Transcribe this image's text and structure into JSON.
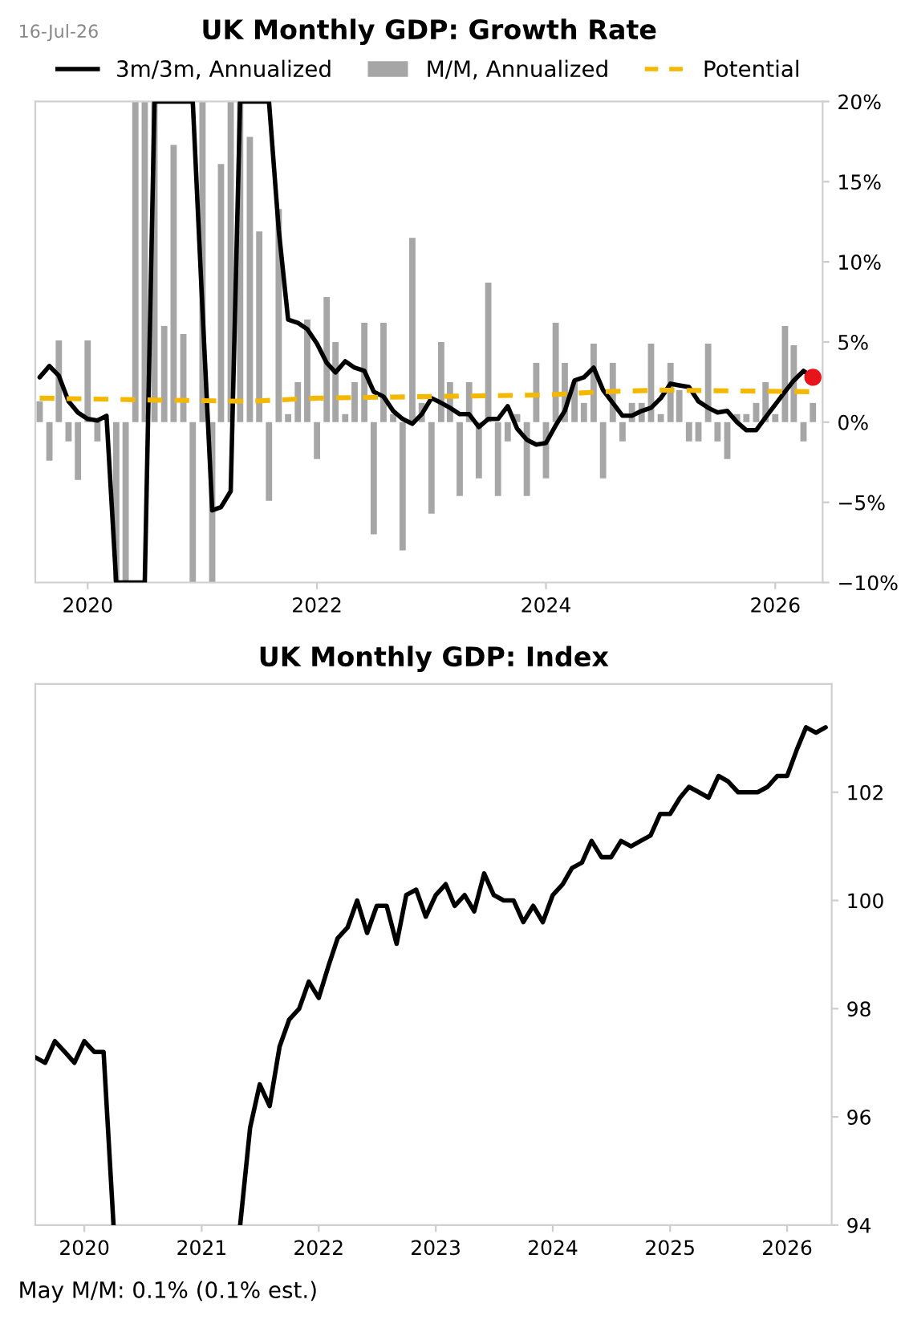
{
  "chart_data": [
    {
      "type": "line",
      "title": "UK Monthly GDP: Growth Rate",
      "legend": "top",
      "grid": false,
      "annotations": [
        "16-Jul-26"
      ],
      "x": [
        "2019-08",
        "2019-09",
        "2019-10",
        "2019-11",
        "2019-12",
        "2020-01",
        "2020-02",
        "2020-03",
        "2020-04",
        "2020-05",
        "2020-06",
        "2020-07",
        "2020-08",
        "2020-09",
        "2020-10",
        "2020-11",
        "2020-12",
        "2021-01",
        "2021-02",
        "2021-03",
        "2021-04",
        "2021-05",
        "2021-06",
        "2021-07",
        "2021-08",
        "2021-09",
        "2021-10",
        "2021-11",
        "2021-12",
        "2022-01",
        "2022-02",
        "2022-03",
        "2022-04",
        "2022-05",
        "2022-06",
        "2022-07",
        "2022-08",
        "2022-09",
        "2022-10",
        "2022-11",
        "2022-12",
        "2023-01",
        "2023-02",
        "2023-03",
        "2023-04",
        "2023-05",
        "2023-06",
        "2023-07",
        "2023-08",
        "2023-09",
        "2023-10",
        "2023-11",
        "2023-12",
        "2024-01",
        "2024-02",
        "2024-03",
        "2024-04",
        "2024-05",
        "2024-06",
        "2024-07",
        "2024-08",
        "2024-09",
        "2024-10",
        "2024-11",
        "2024-12",
        "2025-01",
        "2025-02",
        "2025-03",
        "2025-04",
        "2025-05",
        "2025-06",
        "2025-07",
        "2025-08",
        "2025-09",
        "2025-10",
        "2025-11",
        "2025-12",
        "2026-01",
        "2026-02",
        "2026-03",
        "2026-04",
        "2026-05"
      ],
      "xlim": [
        "2019-07-18",
        "2026-06-01"
      ],
      "xticks": [
        "2020",
        "2022",
        "2024",
        "2026"
      ],
      "ylim": [
        -10,
        20
      ],
      "yticks": [
        {
          "value": -10,
          "label": "−10%"
        },
        {
          "value": -5,
          "label": "−5%"
        },
        {
          "value": 0,
          "label": "0%"
        },
        {
          "value": 5,
          "label": "5%"
        },
        {
          "value": 10,
          "label": "10%"
        },
        {
          "value": 15,
          "label": "15%"
        },
        {
          "value": 20,
          "label": "20%"
        }
      ],
      "series": [
        {
          "name": "3m/3m, Annualized",
          "type": "line",
          "color": "#000000",
          "values": [
            2.8,
            3.5,
            2.9,
            1.3,
            0.6,
            0.2,
            0.1,
            0.4,
            -10,
            -10,
            -10,
            -10,
            20,
            20,
            20,
            20,
            20,
            7,
            -5.5,
            -5.3,
            -4.3,
            20,
            20,
            20,
            20,
            12,
            6.4,
            6.2,
            5.8,
            4.9,
            3.7,
            3.1,
            3.8,
            3.4,
            3.2,
            1.9,
            1.6,
            0.7,
            0.2,
            -0.1,
            0.5,
            1.5,
            1.2,
            0.9,
            0.5,
            0.5,
            -0.3,
            0.2,
            0.2,
            1.0,
            -0.4,
            -1.1,
            -1.4,
            -1.3,
            -0.2,
            0.7,
            2.6,
            2.8,
            3.4,
            2.0,
            1.2,
            0.4,
            0.4,
            0.7,
            0.9,
            1.5,
            2.4,
            2.3,
            2.2,
            1.3,
            0.9,
            0.6,
            0.7,
            0.0,
            -0.5,
            -0.5,
            0.3,
            1.1,
            1.9,
            2.6,
            3.2,
            2.8
          ]
        },
        {
          "name": "M/M, Annualized",
          "type": "bar",
          "color": "#a6a6a6",
          "values": [
            1.3,
            -2.4,
            5.1,
            -1.2,
            -3.6,
            5.1,
            -1.2,
            null,
            -10,
            -10,
            20,
            20,
            20,
            6,
            17.3,
            5.5,
            -10,
            20,
            -10,
            16.1,
            20,
            20,
            17.8,
            11.9,
            -4.9,
            13.3,
            0.5,
            2.5,
            6.4,
            -2.3,
            7.8,
            5.0,
            0.5,
            2.5,
            6.2,
            -7.0,
            6.2,
            0.5,
            -8.0,
            11.5,
            1.2,
            -5.7,
            5.0,
            2.5,
            -4.6,
            2.5,
            -3.5,
            8.7,
            -4.6,
            -1.2,
            0.5,
            -4.6,
            3.7,
            -3.5,
            6.2,
            3.7,
            2.5,
            1.2,
            4.9,
            -3.5,
            3.7,
            -1.2,
            1.2,
            1.2,
            4.9,
            0.5,
            3.7,
            2.0,
            -1.2,
            -1.2,
            4.9,
            -1.2,
            -2.3,
            0.5,
            0.5,
            1.2,
            2.5,
            0.5,
            6.0,
            4.8,
            -1.2,
            1.2
          ]
        },
        {
          "name": "Potential",
          "type": "line",
          "line_style": "dashed",
          "color": "#f5b800",
          "x": [
            "2019-08",
            "2020-06",
            "2021-06",
            "2022-01",
            "2023-01",
            "2024-01",
            "2024-07",
            "2025-01",
            "2026-05"
          ],
          "values": [
            1.5,
            1.4,
            1.3,
            1.5,
            1.6,
            1.7,
            1.9,
            2.0,
            1.9
          ]
        },
        {
          "type": "scatter",
          "marker": "circle",
          "color": "#e8141c",
          "x": [
            "2026-05"
          ],
          "values": [
            2.8
          ]
        }
      ]
    },
    {
      "type": "line",
      "title": "UK Monthly GDP: Index",
      "legend": false,
      "grid": false,
      "annotations": [
        "May M/M: 0.1% (0.1% est.)"
      ],
      "x": [
        "2019-08",
        "2019-09",
        "2019-10",
        "2019-11",
        "2019-12",
        "2020-01",
        "2020-02",
        "2020-03",
        "2020-04",
        "2020-05",
        "2020-06",
        "2020-07",
        "2020-08",
        "2020-09",
        "2020-10",
        "2020-11",
        "2020-12",
        "2021-01",
        "2021-02",
        "2021-03",
        "2021-04",
        "2021-05",
        "2021-06",
        "2021-07",
        "2021-08",
        "2021-09",
        "2021-10",
        "2021-11",
        "2021-12",
        "2022-01",
        "2022-02",
        "2022-03",
        "2022-04",
        "2022-05",
        "2022-06",
        "2022-07",
        "2022-08",
        "2022-09",
        "2022-10",
        "2022-11",
        "2022-12",
        "2023-01",
        "2023-02",
        "2023-03",
        "2023-04",
        "2023-05",
        "2023-06",
        "2023-07",
        "2023-08",
        "2023-09",
        "2023-10",
        "2023-11",
        "2023-12",
        "2024-01",
        "2024-02",
        "2024-03",
        "2024-04",
        "2024-05",
        "2024-06",
        "2024-07",
        "2024-08",
        "2024-09",
        "2024-10",
        "2024-11",
        "2024-12",
        "2025-01",
        "2025-02",
        "2025-03",
        "2025-04",
        "2025-05",
        "2025-06",
        "2025-07",
        "2025-08",
        "2025-09",
        "2025-10",
        "2025-11",
        "2025-12",
        "2026-01",
        "2026-02",
        "2026-03",
        "2026-04",
        "2026-05"
      ],
      "xlim": [
        "2019-08-01",
        "2026-05-20"
      ],
      "xticks": [
        "2020",
        "2021",
        "2022",
        "2023",
        "2024",
        "2025",
        "2026"
      ],
      "ylim": [
        94,
        104
      ],
      "yticks": [
        94,
        96,
        98,
        100,
        102
      ],
      "series": [
        {
          "color": "#000000",
          "values": [
            97.1,
            97.0,
            97.4,
            97.2,
            97.0,
            97.4,
            97.2,
            97.2,
            94,
            null,
            null,
            null,
            null,
            null,
            null,
            null,
            null,
            null,
            null,
            null,
            null,
            94,
            95.8,
            96.6,
            96.2,
            97.3,
            97.8,
            98.0,
            98.5,
            98.2,
            98.8,
            99.3,
            99.5,
            100.0,
            99.4,
            99.9,
            99.9,
            99.2,
            100.1,
            100.2,
            99.7,
            100.1,
            100.3,
            99.9,
            100.1,
            99.8,
            100.5,
            100.1,
            100.0,
            100.0,
            99.6,
            99.9,
            99.6,
            100.1,
            100.3,
            100.6,
            100.7,
            101.1,
            100.8,
            100.8,
            101.1,
            101.0,
            101.1,
            101.2,
            101.6,
            101.6,
            101.9,
            102.1,
            102.0,
            101.9,
            102.3,
            102.2,
            102.0,
            102.0,
            102.0,
            102.1,
            102.3,
            102.3,
            102.8,
            103.2,
            103.1,
            103.2
          ]
        }
      ]
    }
  ]
}
